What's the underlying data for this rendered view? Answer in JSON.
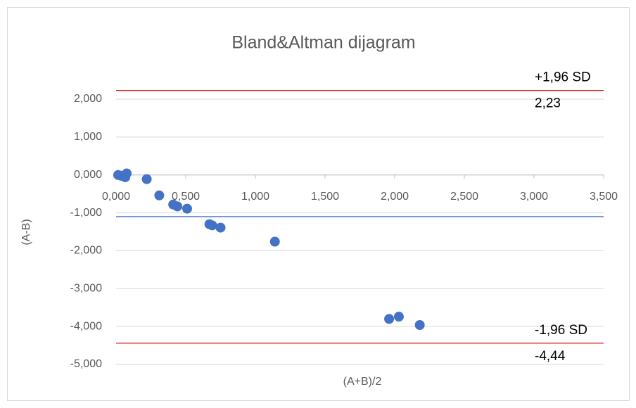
{
  "chart_data": {
    "type": "scatter",
    "title": "Bland&Altman dijagram",
    "x_label": "(A+B)/2",
    "y_label": "(A-B)",
    "color": "#4472c4",
    "x": [
      0.015,
      0.035,
      0.056,
      0.076,
      0.066,
      0.22,
      0.31,
      0.41,
      0.44,
      0.51,
      0.67,
      0.69,
      0.75,
      1.14,
      1.96,
      2.03,
      2.18
    ],
    "values": [
      0,
      -0.02,
      -0.04,
      0.04,
      -0.06,
      -0.11,
      -0.54,
      -0.78,
      -0.83,
      -0.89,
      -1.3,
      -1.33,
      -1.39,
      -1.76,
      -3.8,
      -3.74,
      -3.96
    ],
    "xlim": [
      0,
      3.5
    ],
    "ylim": [
      -5,
      2
    ],
    "xticks": [
      {
        "value": 0,
        "label": "0,000"
      },
      {
        "value": 0.5,
        "label": "0,500"
      },
      {
        "value": 1,
        "label": "1,000"
      },
      {
        "value": 1.5,
        "label": "1,500"
      },
      {
        "value": 2,
        "label": "2,000"
      },
      {
        "value": 2.5,
        "label": "2,500"
      },
      {
        "value": 3,
        "label": "3,000"
      },
      {
        "value": 3.5,
        "label": "3,500"
      }
    ],
    "yticks": [
      {
        "value": -5,
        "label": "-5,000"
      },
      {
        "value": -4,
        "label": "-4,000"
      },
      {
        "value": -3,
        "label": "-3,000"
      },
      {
        "value": -2,
        "label": "-2,000"
      },
      {
        "value": -1,
        "label": "-1,000"
      },
      {
        "value": 0,
        "label": "0,000"
      },
      {
        "value": 1,
        "label": "1,000"
      },
      {
        "value": 2,
        "label": "2,000"
      }
    ],
    "grid": true,
    "reference_lines": [
      {
        "name": "+1,96 SD",
        "value": 2.23,
        "label": "2,23",
        "color": "#e02020"
      },
      {
        "value": -1.1,
        "color": "#4472c4"
      },
      {
        "name": "-1,96 SD",
        "value": -4.44,
        "label": "-4,44",
        "color": "#e02020"
      }
    ]
  }
}
